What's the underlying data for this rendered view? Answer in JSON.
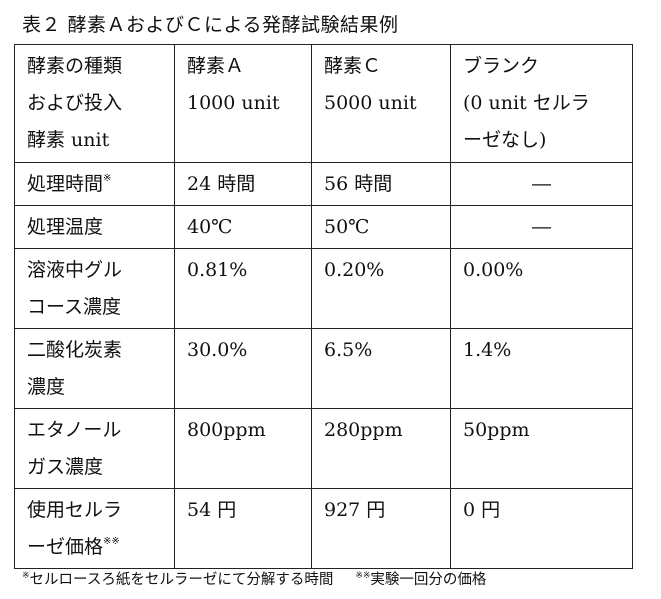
{
  "title": "表２ 酵素ＡおよびＣによる発酵試験結果例",
  "header": {
    "col0": [
      "酵素の種類",
      "および投入",
      "酵素 unit"
    ],
    "col1": [
      "酵素Ａ",
      "1000 unit"
    ],
    "col2": [
      "酵素Ｃ",
      "5000 unit"
    ],
    "col3": [
      "ブランク",
      "(0 unit セルラ",
      "ーゼなし)"
    ]
  },
  "rows": [
    {
      "label": [
        "処理時間"
      ],
      "mark": "※",
      "a": "24 時間",
      "c": "56 時間",
      "blank": "―"
    },
    {
      "label": [
        "処理温度"
      ],
      "mark": "",
      "a": "40℃",
      "c": "50℃",
      "blank": "―"
    },
    {
      "label": [
        "溶液中グル",
        "コース濃度"
      ],
      "mark": "",
      "a": "0.81%",
      "c": "0.20%",
      "blank": "0.00%"
    },
    {
      "label": [
        "二酸化炭素",
        "濃度"
      ],
      "mark": "",
      "a": "30.0%",
      "c": "6.5%",
      "blank": "1.4%"
    },
    {
      "label": [
        "エタノール",
        "ガス濃度"
      ],
      "mark": "",
      "a": "800ppm",
      "c": "280ppm",
      "blank": "50ppm"
    },
    {
      "label": [
        "使用セルラ",
        "ーゼ価格"
      ],
      "mark": "※※",
      "a": "54 円",
      "c": "927 円",
      "blank": "0 円"
    }
  ],
  "footnote": {
    "mark1": "※",
    "text1": "セルロースろ紙をセルラーゼにて分解する時間",
    "mark2": "※※",
    "text2": "実験一回分の価格"
  }
}
